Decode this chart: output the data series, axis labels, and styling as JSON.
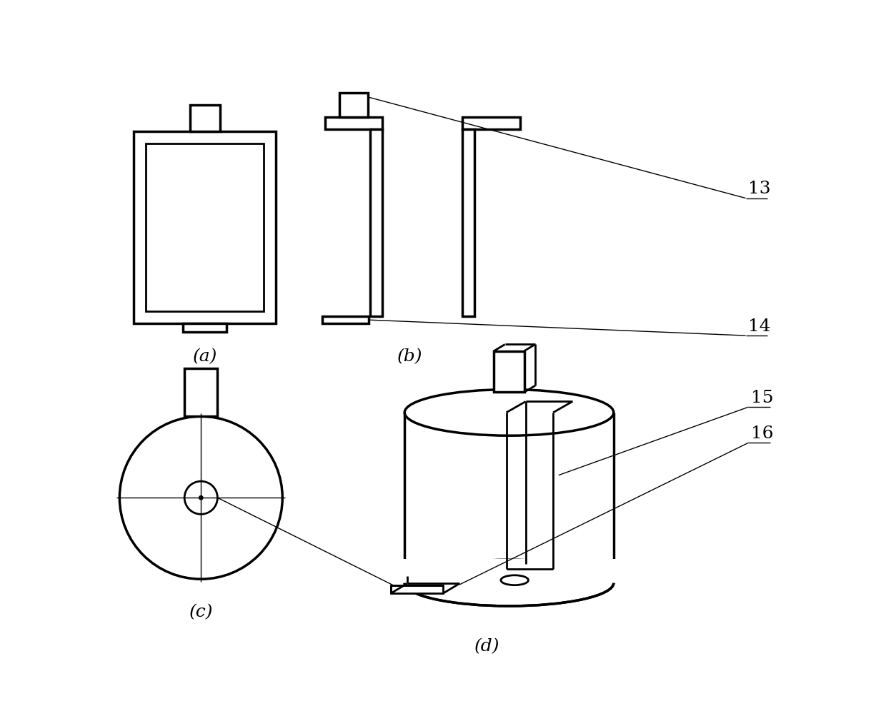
{
  "bg_color": "#ffffff",
  "line_color": "#000000",
  "lw_thick": 2.5,
  "lw_med": 2.0,
  "lw_thin": 1.0,
  "label_a": "(a)",
  "label_b": "(b)",
  "label_c": "(c)",
  "label_d": "(d)",
  "label_13": "13",
  "label_14": "14",
  "label_15": "15",
  "label_16": "16",
  "font_size": 18
}
